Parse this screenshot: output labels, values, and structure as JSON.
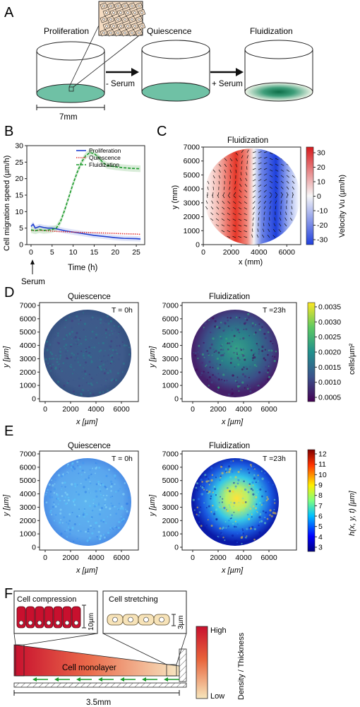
{
  "panelA": {
    "letter": "A",
    "proliferation": "Proliferation",
    "quiescence": "Quiescence",
    "fluidization": "Fluidization",
    "minus_serum": "- Serum",
    "plus_serum": "+ Serum",
    "scale": "7mm",
    "well_color": "#6fc1a5"
  },
  "panelB": {
    "letter": "B",
    "ylabel": "Cell migration speed (µm/h)",
    "xlabel": "Time (h)",
    "serum_label": "Serum",
    "legend": [
      "Proliferation",
      "Quiescence",
      "Fluidization"
    ]
  },
  "panelC": {
    "letter": "C",
    "title": "Fluidization",
    "xlabel": "x (mm)",
    "ylabel": "y (mm)",
    "cbar_label": "Velocity Vu (µm/h)",
    "cbar_ticks": [
      "30",
      "20",
      "10",
      "0",
      "-10",
      "-20",
      "-30"
    ]
  },
  "panelD": {
    "letter": "D",
    "left_title": "Quiescence",
    "right_title": "Fluidization",
    "left_time": "T = 0h",
    "right_time": "T =23h",
    "xlabel": "x [µm]",
    "ylabel": "y [µm]",
    "cbar_label": "cells/µm²",
    "cbar_ticks": [
      "0.0035",
      "0.0030",
      "0.0025",
      "0.0020",
      "0.0015",
      "0.0010",
      "0.0005"
    ]
  },
  "panelE": {
    "letter": "E",
    "left_title": "Quiescence",
    "right_title": "Fluidization",
    "left_time": "T = 0h",
    "right_time": "T =23h",
    "xlabel": "x [µm]",
    "ylabel": "y [µm]",
    "cbar_label": "h(x, y, t) [µm]",
    "cbar_ticks": [
      "12",
      "11",
      "10",
      "9",
      "8",
      "7",
      "6",
      "5",
      "4",
      "3"
    ]
  },
  "panelF": {
    "letter": "F",
    "compression": "Cell compression",
    "stretching": "Cell stretching",
    "monolayer": "Cell monolayer",
    "comp_scale": "10µm",
    "stretch_scale": "3µm",
    "scale": "3.5mm",
    "cbar_high": "High",
    "cbar_low": "Low",
    "cbar_label": "Density / Thickness"
  },
  "axis_ticks": {
    "map_x": [
      "0",
      "2000",
      "4000",
      "6000"
    ],
    "map_y": [
      "0",
      "1000",
      "2000",
      "3000",
      "4000",
      "5000",
      "6000",
      "7000"
    ],
    "b_x": [
      "0",
      "5",
      "10",
      "15",
      "20",
      "25"
    ],
    "b_y": [
      "0",
      "5",
      "10",
      "15",
      "20",
      "25",
      "30"
    ]
  },
  "chart_data": {
    "type": "line",
    "xlabel": "Time (h)",
    "ylabel": "Cell migration speed (µm/h)",
    "xlim": [
      -1,
      27
    ],
    "ylim": [
      0,
      30
    ],
    "series": [
      {
        "name": "Proliferation",
        "color": "#1f3fd0",
        "x": [
          0,
          0.5,
          1,
          2,
          3,
          4,
          5,
          6,
          8,
          10,
          12,
          15,
          18,
          20,
          22,
          25,
          26
        ],
        "y": [
          5.5,
          6.2,
          5.0,
          5.5,
          5.2,
          5.0,
          5.0,
          4.8,
          4.2,
          3.8,
          3.4,
          2.8,
          2.4,
          2.1,
          1.9,
          1.8,
          1.7
        ]
      },
      {
        "name": "Quiescence",
        "color": "#e23030",
        "x": [
          0,
          2,
          4,
          6,
          8,
          10,
          12,
          15,
          18,
          20,
          22,
          25,
          26
        ],
        "y": [
          4.3,
          4.3,
          4.2,
          4.0,
          3.9,
          3.8,
          3.7,
          3.6,
          3.5,
          3.4,
          3.3,
          3.2,
          3.1
        ],
        "dash": "dot"
      },
      {
        "name": "Fluidization",
        "color": "#1a9a2a",
        "x": [
          0,
          1,
          2,
          3,
          4,
          5,
          6,
          7,
          8,
          9,
          10,
          11,
          12,
          13,
          14,
          15,
          16,
          17,
          18,
          20,
          22,
          24,
          26
        ],
        "y": [
          4.5,
          4.2,
          4.5,
          4.3,
          4.4,
          4.6,
          5.0,
          7.0,
          10.5,
          14.5,
          18.5,
          22.0,
          25.0,
          27.0,
          27.9,
          27.6,
          26.5,
          25.0,
          24.0,
          23.6,
          23.3,
          23.1,
          23.0
        ],
        "dash": "dash"
      }
    ]
  }
}
